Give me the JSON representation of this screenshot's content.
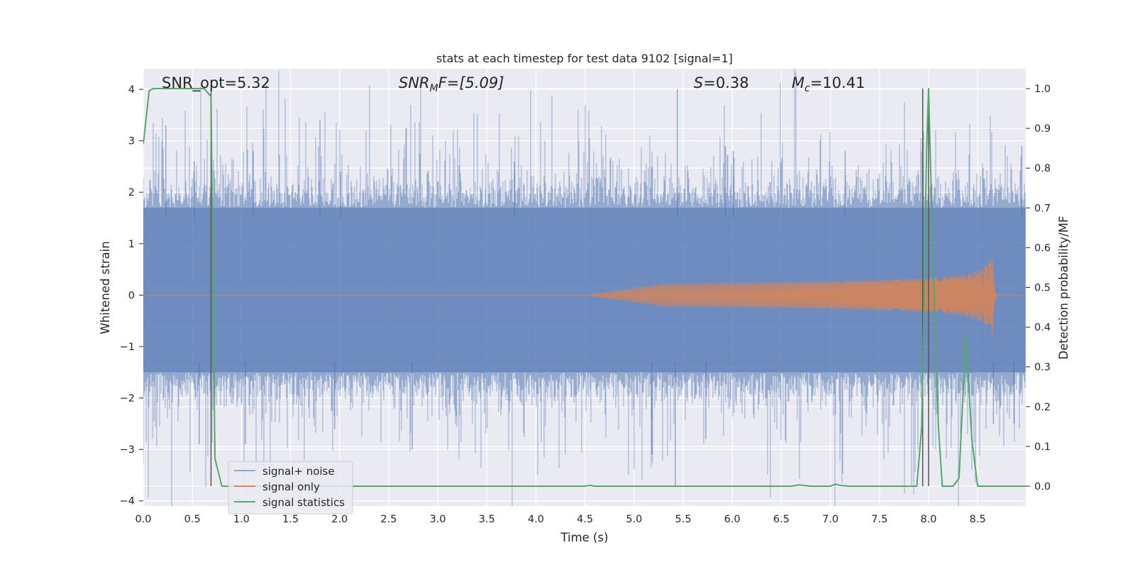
{
  "chart_data": {
    "type": "line",
    "title": "stats at each timestep for test data 9102 [signal=1]",
    "xlabel": "Time (s)",
    "ylabel": "Whitened strain",
    "y2label": "Detection probability/MF",
    "xlim": [
      0.0,
      8.99
    ],
    "ylim": [
      -4.1,
      4.4
    ],
    "y2lim": [
      -0.05,
      1.05
    ],
    "x_ticks": [
      "0.0",
      "0.5",
      "1.0",
      "1.5",
      "2.0",
      "2.5",
      "3.0",
      "3.5",
      "4.0",
      "4.5",
      "5.0",
      "5.5",
      "6.0",
      "6.5",
      "7.0",
      "7.5",
      "8.0",
      "8.5"
    ],
    "y_ticks": [
      "−4",
      "−3",
      "−2",
      "−1",
      "0",
      "1",
      "2",
      "3",
      "4"
    ],
    "y2_ticks": [
      "0.0",
      "0.1",
      "0.2",
      "0.3",
      "0.4",
      "0.5",
      "0.6",
      "0.7",
      "0.8",
      "0.9",
      "1.0"
    ],
    "grid": true,
    "legend_position": "lower-left",
    "annotations": {
      "snr_opt": "SNR_opt=5.32",
      "snr_mf": {
        "sym": "SNR",
        "sub": "M",
        "rest": "F=[5.09]"
      },
      "s_val": {
        "sym": "S",
        "rest": "=0.38"
      },
      "mc": {
        "sym": "M",
        "sub": "c",
        "rest": "=10.41"
      }
    },
    "vertical_lines_x": [
      0.69,
      7.94,
      8.0
    ],
    "colors": {
      "plot_bg": "#eaeaf2",
      "grid": "#ffffff",
      "noise": "#4c72b0",
      "signal": "#dd8452",
      "stats": "#55a868",
      "vline": "#555555"
    },
    "series": [
      {
        "name": "signal+ noise",
        "axis": "left",
        "kind": "noisy_strain",
        "typical_band": [
          -1.5,
          1.7
        ],
        "peaks": [
          [
            0.23,
            3.3
          ],
          [
            0.52,
            2.6
          ],
          [
            1.12,
            2.8
          ],
          [
            1.8,
            3.4
          ],
          [
            2.01,
            2.4
          ],
          [
            3.78,
            2.6
          ],
          [
            5.44,
            4.0
          ],
          [
            5.93,
            2.9
          ],
          [
            6.01,
            2.8
          ],
          [
            7.15,
            2.8
          ],
          [
            8.95,
            2.9
          ],
          [
            0.57,
            -2.9
          ],
          [
            1.04,
            -2.9
          ],
          [
            1.95,
            -2.6
          ],
          [
            2.74,
            -3.0
          ],
          [
            5.18,
            -3.1
          ],
          [
            5.42,
            -3.7
          ],
          [
            5.73,
            -2.8
          ],
          [
            8.66,
            -2.5
          ],
          [
            8.87,
            -2.5
          ]
        ]
      },
      {
        "name": "signal only",
        "axis": "left",
        "kind": "chirp",
        "start_x": 4.5,
        "merger_x": 8.65,
        "peak_amplitude": 0.82
      },
      {
        "name": "signal statistics",
        "axis": "right",
        "points": [
          [
            0.0,
            0.86
          ],
          [
            0.06,
            0.995
          ],
          [
            0.1,
            1.0
          ],
          [
            0.62,
            1.0
          ],
          [
            0.69,
            0.98
          ],
          [
            0.73,
            0.07
          ],
          [
            0.8,
            0.0
          ],
          [
            4.5,
            0.0
          ],
          [
            4.55,
            0.002
          ],
          [
            4.6,
            0.0
          ],
          [
            6.6,
            0.0
          ],
          [
            6.68,
            0.003
          ],
          [
            6.8,
            0.0
          ],
          [
            7.0,
            0.0
          ],
          [
            7.05,
            0.005
          ],
          [
            7.1,
            0.002
          ],
          [
            7.2,
            0.0
          ],
          [
            7.88,
            0.0
          ],
          [
            7.93,
            0.15
          ],
          [
            7.98,
            0.85
          ],
          [
            8.0,
            1.0
          ],
          [
            8.04,
            0.62
          ],
          [
            8.1,
            0.15
          ],
          [
            8.14,
            0.0
          ],
          [
            8.25,
            0.0
          ],
          [
            8.31,
            0.02
          ],
          [
            8.38,
            0.38
          ],
          [
            8.44,
            0.12
          ],
          [
            8.5,
            0.0
          ],
          [
            8.99,
            0.0
          ]
        ]
      }
    ]
  }
}
